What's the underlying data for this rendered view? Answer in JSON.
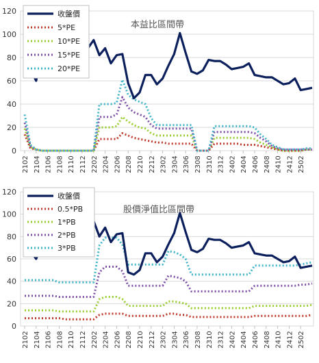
{
  "chart_data": [
    {
      "type": "line",
      "title": "本益比區間帶",
      "xlabel": "",
      "ylabel": "",
      "ylim": [
        0,
        120
      ],
      "yticks": [
        0,
        20,
        40,
        60,
        80,
        100,
        120
      ],
      "xticks": [
        "2102",
        "2104",
        "2106",
        "2108",
        "2110",
        "2112",
        "2202",
        "2204",
        "2206",
        "2208",
        "2210",
        "2212",
        "2302",
        "2304",
        "2306",
        "2308",
        "2310",
        "2312",
        "2402",
        "2404",
        "2406",
        "2408",
        "2410",
        "2412",
        "2502"
      ],
      "legend_position": "top-left",
      "grid": "horizontal",
      "series": [
        {
          "name": "收盤價",
          "color": "#0b1f5c",
          "style": "solid",
          "values": [
            82,
            70,
            60,
            85,
            82,
            84,
            88,
            85,
            75,
            70,
            72,
            88,
            95,
            82,
            88,
            75,
            82,
            83,
            58,
            45,
            50,
            65,
            65,
            57,
            62,
            73,
            83,
            101,
            84,
            68,
            66,
            69,
            78,
            77,
            77,
            74,
            70,
            71,
            72,
            75,
            65,
            64,
            63,
            63,
            60,
            57,
            58,
            62,
            52,
            53,
            54
          ]
        },
        {
          "name": "5*PE",
          "color": "#c0392b",
          "style": "dotted",
          "values": [
            14,
            2,
            1,
            0,
            0,
            0,
            0,
            0,
            0,
            0,
            0,
            0,
            0,
            10,
            10,
            10,
            10,
            15,
            13,
            11,
            10,
            9,
            8,
            7,
            7,
            6,
            6,
            6,
            6,
            6,
            0,
            0,
            0,
            6,
            6,
            6,
            6,
            6,
            5,
            5,
            5,
            4,
            3,
            2,
            1,
            0,
            0,
            0,
            0,
            1,
            1
          ]
        },
        {
          "name": "10*PE",
          "color": "#9acd32",
          "style": "dotted",
          "values": [
            19,
            3,
            1,
            0,
            0,
            0,
            0,
            0,
            0,
            0,
            0,
            0,
            0,
            20,
            20,
            20,
            21,
            29,
            25,
            22,
            20,
            19,
            15,
            13,
            13,
            13,
            13,
            13,
            13,
            13,
            0,
            0,
            0,
            11,
            11,
            11,
            11,
            11,
            11,
            11,
            10,
            7,
            5,
            3,
            1,
            0,
            0,
            0,
            0,
            1,
            1
          ]
        },
        {
          "name": "15*PE",
          "color": "#7d4fa8",
          "style": "dotted",
          "values": [
            24,
            4,
            1,
            0,
            0,
            0,
            0,
            0,
            0,
            0,
            0,
            0,
            0,
            29,
            29,
            29,
            31,
            46,
            37,
            33,
            31,
            29,
            22,
            19,
            19,
            19,
            19,
            19,
            19,
            19,
            0,
            0,
            0,
            16,
            16,
            16,
            16,
            16,
            16,
            16,
            15,
            11,
            8,
            4,
            2,
            1,
            1,
            1,
            1,
            1,
            1
          ]
        },
        {
          "name": "20*PE",
          "color": "#3fb5c8",
          "style": "dotted",
          "values": [
            31,
            5,
            1,
            0,
            0,
            0,
            0,
            0,
            0,
            0,
            0,
            0,
            0,
            40,
            40,
            40,
            41,
            61,
            48,
            44,
            42,
            40,
            28,
            22,
            22,
            22,
            22,
            22,
            22,
            22,
            0,
            0,
            0,
            21,
            21,
            21,
            21,
            21,
            21,
            21,
            20,
            14,
            10,
            5,
            3,
            1,
            1,
            1,
            1,
            2,
            2
          ]
        }
      ]
    },
    {
      "type": "line",
      "title": "股價淨值比區間帶",
      "xlabel": "",
      "ylabel": "",
      "ylim": [
        0,
        120
      ],
      "yticks": [
        0,
        20,
        40,
        60,
        80,
        100,
        120
      ],
      "xticks": [
        "2102",
        "2104",
        "2106",
        "2108",
        "2110",
        "2112",
        "2202",
        "2204",
        "2206",
        "2208",
        "2210",
        "2212",
        "2302",
        "2304",
        "2306",
        "2308",
        "2310",
        "2312",
        "2402",
        "2404",
        "2406",
        "2408",
        "2410",
        "2412",
        "2502"
      ],
      "legend_position": "top-left",
      "grid": "horizontal",
      "series": [
        {
          "name": "收盤價",
          "color": "#0b1f5c",
          "style": "solid",
          "values": [
            66,
            67,
            60,
            73,
            72,
            74,
            68,
            66,
            67,
            70,
            72,
            88,
            94,
            80,
            88,
            75,
            82,
            83,
            48,
            46,
            50,
            65,
            65,
            57,
            62,
            73,
            83,
            101,
            84,
            68,
            66,
            69,
            78,
            77,
            77,
            74,
            70,
            71,
            72,
            75,
            65,
            64,
            63,
            63,
            60,
            57,
            58,
            62,
            52,
            53,
            54
          ]
        },
        {
          "name": "0.5*PB",
          "color": "#c0392b",
          "style": "dotted",
          "values": [
            7,
            7,
            7,
            7,
            7,
            7,
            7,
            6,
            6,
            6,
            6,
            6,
            6,
            10,
            11,
            11,
            11,
            11,
            9,
            9,
            9,
            9,
            9,
            9,
            9,
            11,
            11,
            10,
            10,
            8,
            8,
            8,
            8,
            8,
            8,
            8,
            8,
            8,
            8,
            8,
            9,
            9,
            9,
            9,
            9,
            9,
            9,
            9,
            9,
            9,
            10
          ]
        },
        {
          "name": "1*PB",
          "color": "#9acd32",
          "style": "dotted",
          "values": [
            14,
            14,
            14,
            14,
            14,
            14,
            13,
            13,
            13,
            13,
            13,
            13,
            13,
            24,
            26,
            26,
            26,
            24,
            18,
            18,
            18,
            18,
            18,
            18,
            18,
            22,
            22,
            21,
            20,
            16,
            16,
            16,
            16,
            16,
            16,
            16,
            16,
            16,
            16,
            16,
            18,
            18,
            18,
            18,
            18,
            18,
            18,
            18,
            18,
            18,
            19
          ]
        },
        {
          "name": "2*PB",
          "color": "#7d4fa8",
          "style": "dotted",
          "values": [
            27,
            27,
            27,
            27,
            27,
            27,
            26,
            26,
            26,
            26,
            26,
            26,
            26,
            48,
            53,
            53,
            53,
            49,
            36,
            36,
            36,
            36,
            36,
            36,
            36,
            45,
            44,
            43,
            40,
            31,
            31,
            31,
            31,
            31,
            31,
            31,
            31,
            31,
            31,
            31,
            36,
            36,
            36,
            36,
            36,
            36,
            36,
            36,
            37,
            37,
            38
          ]
        },
        {
          "name": "3*PB",
          "color": "#3fb5c8",
          "style": "dotted",
          "values": [
            41,
            41,
            41,
            41,
            41,
            41,
            39,
            39,
            39,
            39,
            39,
            39,
            39,
            72,
            79,
            79,
            79,
            73,
            55,
            55,
            55,
            55,
            55,
            55,
            55,
            67,
            66,
            64,
            60,
            46,
            46,
            46,
            46,
            46,
            46,
            46,
            46,
            46,
            46,
            46,
            54,
            54,
            54,
            54,
            54,
            54,
            54,
            54,
            55,
            56,
            57
          ]
        }
      ]
    }
  ]
}
